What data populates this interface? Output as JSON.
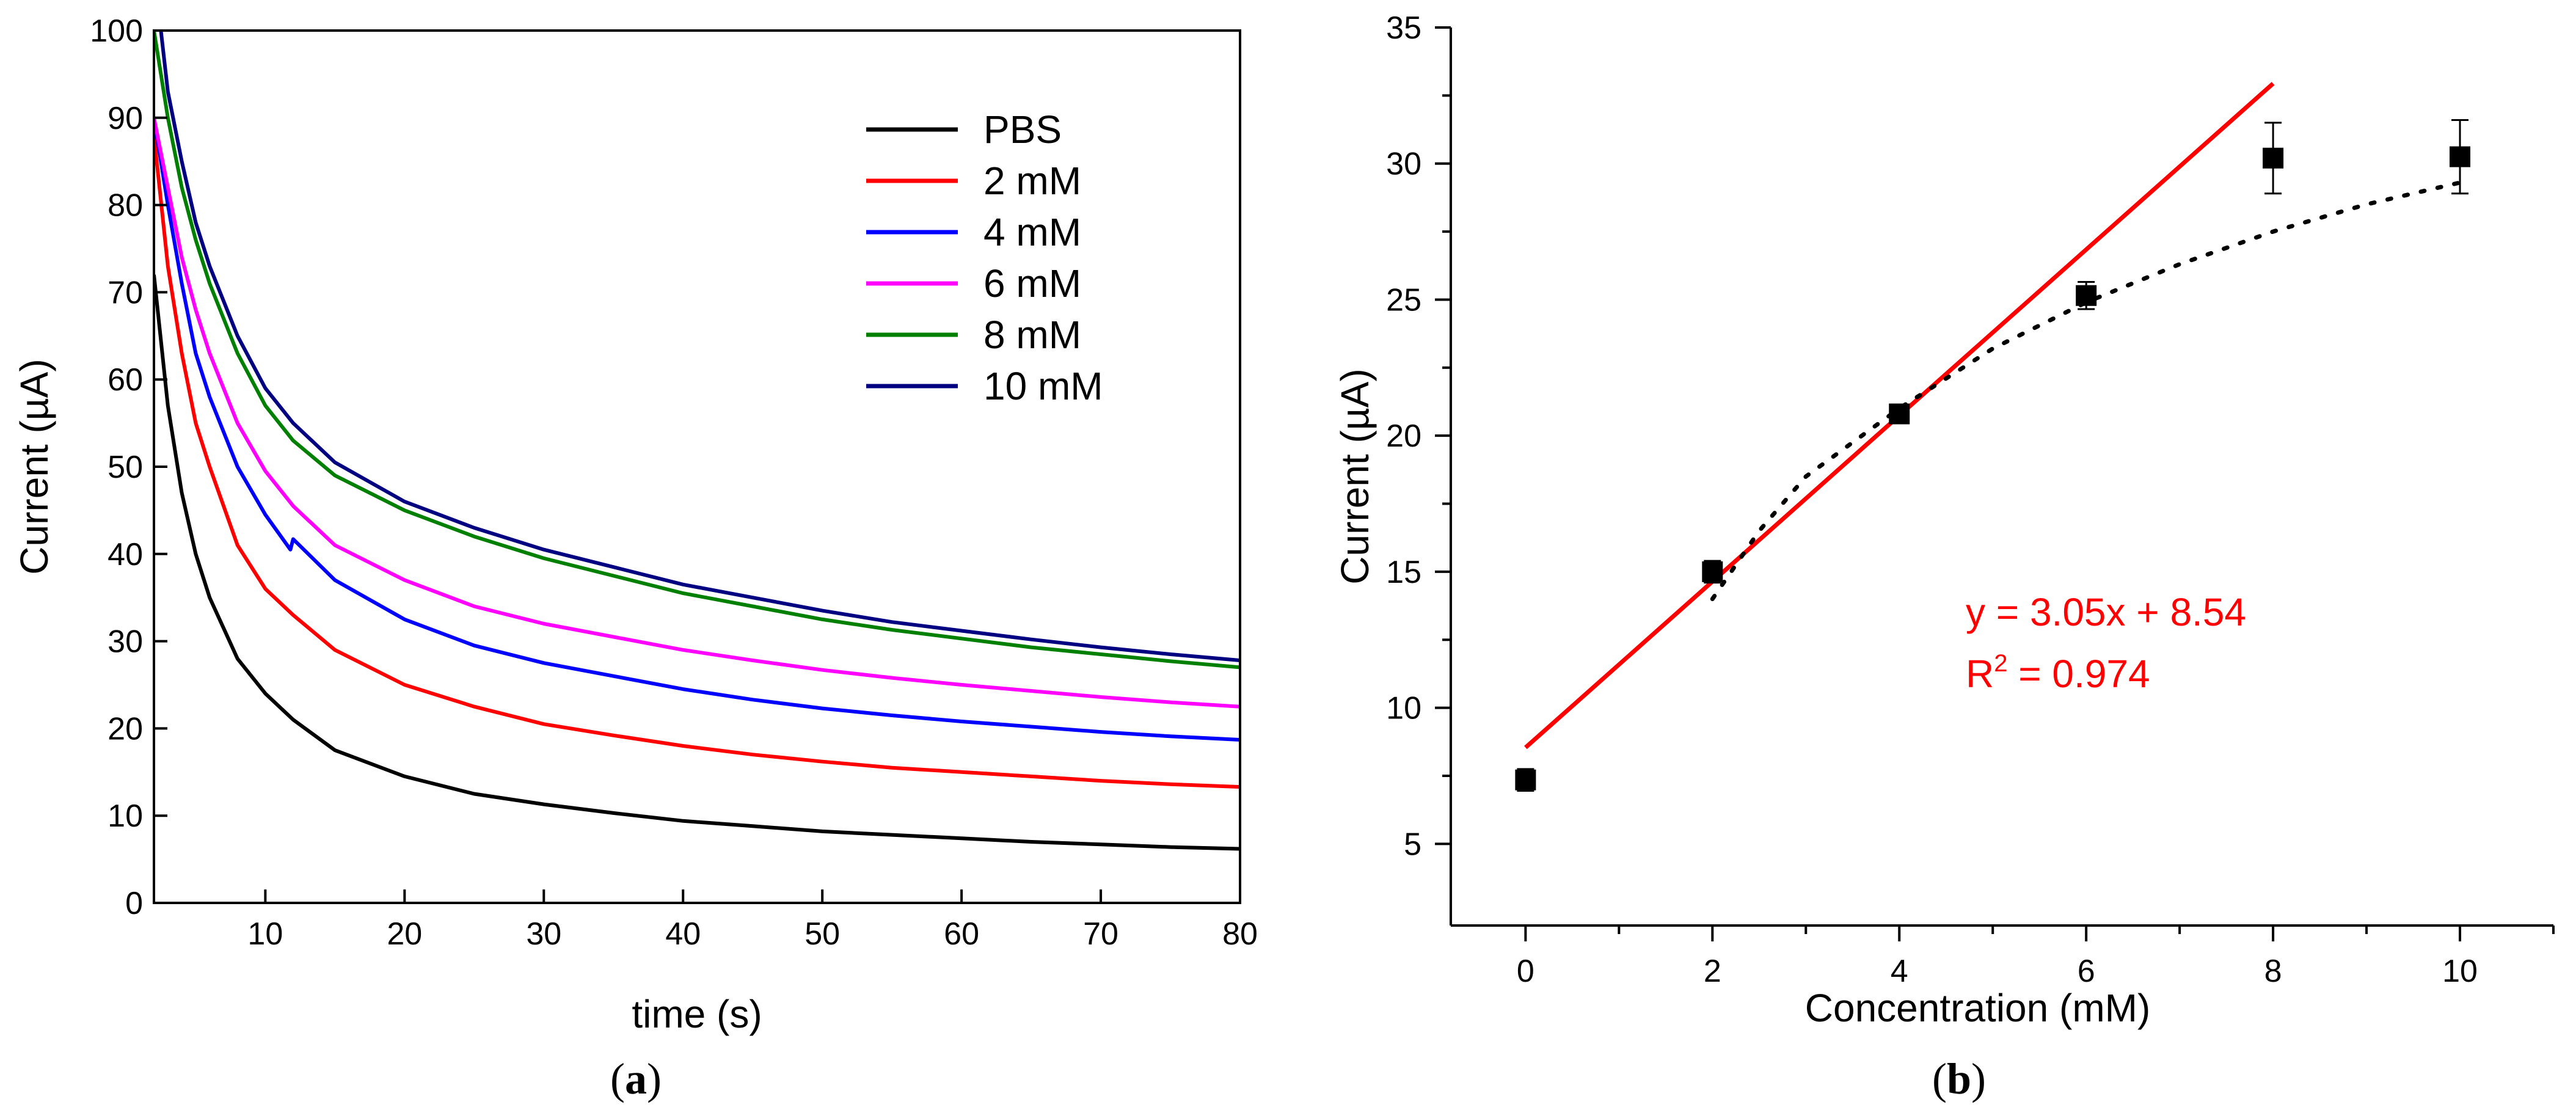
{
  "chart_data": [
    {
      "type": "line",
      "panel": "a",
      "xlabel": "time (s)",
      "ylabel": "Current (µA)",
      "xlim": [
        2,
        80
      ],
      "ylim": [
        0,
        100
      ],
      "xticks": [
        10,
        20,
        30,
        40,
        50,
        60,
        70,
        80
      ],
      "yticks": [
        0,
        10,
        20,
        30,
        40,
        50,
        60,
        70,
        80,
        90,
        100
      ],
      "legend_position": "top-right",
      "series": [
        {
          "name": "PBS",
          "color": "#000000",
          "x": [
            2,
            3,
            4,
            5,
            6,
            8,
            10,
            12,
            15,
            20,
            25,
            30,
            35,
            40,
            45,
            50,
            55,
            60,
            65,
            70,
            75,
            80
          ],
          "values": [
            72,
            57,
            47,
            40,
            35,
            28,
            24,
            21,
            17.5,
            14.5,
            12.5,
            11.3,
            10.3,
            9.4,
            8.8,
            8.2,
            7.8,
            7.4,
            7.0,
            6.7,
            6.4,
            6.2
          ]
        },
        {
          "name": "2 mM",
          "color": "#ff0000",
          "x": [
            2,
            3,
            4,
            5,
            6,
            8,
            10,
            12,
            15,
            20,
            25,
            30,
            35,
            40,
            45,
            50,
            55,
            60,
            65,
            70,
            75,
            80
          ],
          "values": [
            88,
            73,
            63,
            55,
            50,
            41,
            36,
            33,
            29,
            25,
            22.5,
            20.5,
            19.2,
            18,
            17,
            16.2,
            15.5,
            15,
            14.5,
            14,
            13.6,
            13.3
          ]
        },
        {
          "name": "4 mM",
          "color": "#0000ff",
          "x": [
            2,
            3,
            4,
            5,
            6,
            8,
            10,
            11.8,
            12,
            15,
            20,
            25,
            30,
            35,
            40,
            45,
            50,
            55,
            60,
            65,
            70,
            75,
            80
          ],
          "values": [
            90,
            80,
            71,
            63,
            58,
            50,
            44.5,
            40.5,
            41.7,
            37,
            32.5,
            29.5,
            27.5,
            26,
            24.5,
            23.3,
            22.3,
            21.5,
            20.8,
            20.2,
            19.6,
            19.1,
            18.7
          ]
        },
        {
          "name": "6 mM",
          "color": "#ff00ff",
          "x": [
            2,
            3,
            4,
            5,
            6,
            8,
            10,
            12,
            15,
            20,
            25,
            30,
            35,
            40,
            45,
            50,
            55,
            60,
            65,
            70,
            75,
            80
          ],
          "values": [
            90,
            82,
            74,
            68,
            63,
            55,
            49.5,
            45.5,
            41,
            37,
            34,
            32,
            30.5,
            29,
            27.8,
            26.7,
            25.8,
            25,
            24.3,
            23.6,
            23,
            22.5
          ]
        },
        {
          "name": "8 mM",
          "color": "#008000",
          "x": [
            2,
            3,
            4,
            5,
            6,
            8,
            10,
            12,
            15,
            20,
            25,
            30,
            35,
            40,
            45,
            50,
            55,
            60,
            65,
            70,
            75,
            80
          ],
          "values": [
            100,
            90,
            82,
            76,
            71,
            63,
            57,
            53,
            49,
            45,
            42,
            39.5,
            37.5,
            35.5,
            34,
            32.5,
            31.3,
            30.3,
            29.3,
            28.5,
            27.7,
            27
          ]
        },
        {
          "name": "10 mM",
          "color": "#000080",
          "x": [
            2.5,
            3,
            4,
            5,
            6,
            8,
            10,
            12,
            15,
            20,
            25,
            30,
            35,
            40,
            45,
            50,
            55,
            60,
            65,
            70,
            75,
            80
          ],
          "values": [
            100,
            93,
            85,
            78,
            73,
            65,
            59,
            55,
            50.5,
            46,
            43,
            40.5,
            38.5,
            36.5,
            35,
            33.5,
            32.2,
            31.2,
            30.2,
            29.3,
            28.5,
            27.8
          ]
        }
      ]
    },
    {
      "type": "scatter",
      "panel": "b",
      "xlabel": "Concentration (mM)",
      "ylabel": "Current (µA)",
      "xlim": [
        -0.8,
        11
      ],
      "ylim": [
        2,
        35
      ],
      "xticks": [
        0,
        2,
        4,
        6,
        8,
        10
      ],
      "yticks": [
        5,
        10,
        15,
        20,
        25,
        30,
        35
      ],
      "points": {
        "x": [
          0,
          2,
          4,
          6,
          8,
          10
        ],
        "values": [
          7.35,
          15.0,
          20.8,
          25.15,
          30.2,
          30.25
        ],
        "error": [
          0.4,
          0.4,
          0.3,
          0.5,
          1.3,
          1.35
        ]
      },
      "fit_line": {
        "slope": 3.05,
        "intercept": 8.54,
        "x_range": [
          0,
          8
        ],
        "color": "#ff0000"
      },
      "dotted_curve": {
        "x": [
          2,
          2.5,
          3,
          4,
          5,
          6,
          7,
          8,
          9,
          10
        ],
        "values": [
          14,
          16.5,
          18.5,
          21.0,
          23.2,
          24.9,
          26.3,
          27.5,
          28.5,
          29.3
        ]
      },
      "annotation": {
        "equation": "y = 3.05x + 8.54",
        "r2_prefix": "R",
        "r2_sup": "2",
        "r2_value": " = 0.974",
        "color": "#ff0000"
      }
    }
  ],
  "panel_labels": {
    "a": "a",
    "b": "b"
  }
}
